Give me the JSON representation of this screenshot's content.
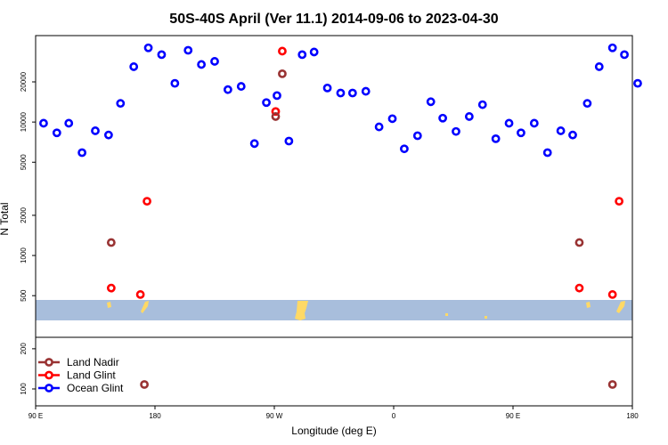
{
  "chart_data": {
    "type": "scatter",
    "title": "50S-40S April (Ver 11.1)   2014-09-06 to 2023-04-30",
    "xlabel": "Longitude (deg E)",
    "ylabel": "N Total",
    "y_scale": "log",
    "xlim": [
      90,
      547
    ],
    "ylim": [
      70,
      60000
    ],
    "grid": false,
    "legend_position": "bottom-left",
    "x_ticks": [
      {
        "value": 90,
        "label": "90 E"
      },
      {
        "value": 180,
        "label": "180"
      },
      {
        "value": 270,
        "label": "90 W"
      },
      {
        "value": 360,
        "label": "0"
      },
      {
        "value": 450,
        "label": "90 E"
      },
      {
        "value": 540,
        "label": "180"
      }
    ],
    "y_ticks": [
      {
        "value": 100,
        "label": "100"
      },
      {
        "value": 200,
        "label": "200"
      },
      {
        "value": 500,
        "label": "500"
      },
      {
        "value": 1000,
        "label": "1000"
      },
      {
        "value": 2000,
        "label": "2000"
      },
      {
        "value": 5000,
        "label": "5000"
      },
      {
        "value": 10000,
        "label": "10000"
      },
      {
        "value": 20000,
        "label": "20000"
      }
    ],
    "series": [
      {
        "name": "Land Nadir",
        "color": "#993333",
        "x": [
          147,
          172,
          271,
          276,
          500,
          525
        ],
        "y": [
          1250,
          108,
          11000,
          23000,
          1250,
          108
        ]
      },
      {
        "name": "Land Glint",
        "color": "#ff0000",
        "x": [
          147,
          169,
          174,
          271,
          276,
          500,
          525,
          530
        ],
        "y": [
          570,
          510,
          2550,
          12000,
          34000,
          570,
          510,
          2550
        ]
      },
      {
        "name": "Ocean Glint",
        "color": "#0000ff",
        "x": [
          96,
          106,
          115,
          125,
          135,
          145,
          154,
          164,
          175,
          185,
          195,
          205,
          215,
          225,
          235,
          245,
          255,
          264,
          272,
          281,
          291,
          300,
          310,
          320,
          329,
          339,
          349,
          359,
          368,
          378,
          388,
          397,
          407,
          417,
          427,
          437,
          447,
          456,
          466,
          476,
          486,
          495,
          506,
          515,
          525,
          534,
          544
        ],
        "y": [
          9800,
          8300,
          9800,
          5900,
          8600,
          8000,
          13800,
          26000,
          36000,
          32000,
          19500,
          34500,
          27000,
          28500,
          17500,
          18500,
          6900,
          14000,
          15800,
          7200,
          32000,
          33500,
          18000,
          16500,
          16500,
          17000,
          9200,
          10600,
          6300,
          7900,
          14200,
          10700,
          8500,
          11000,
          13500,
          7500,
          9800,
          8300,
          9800,
          5900,
          8600,
          8000,
          13800,
          26000,
          36000,
          32000,
          19500
        ]
      }
    ]
  }
}
